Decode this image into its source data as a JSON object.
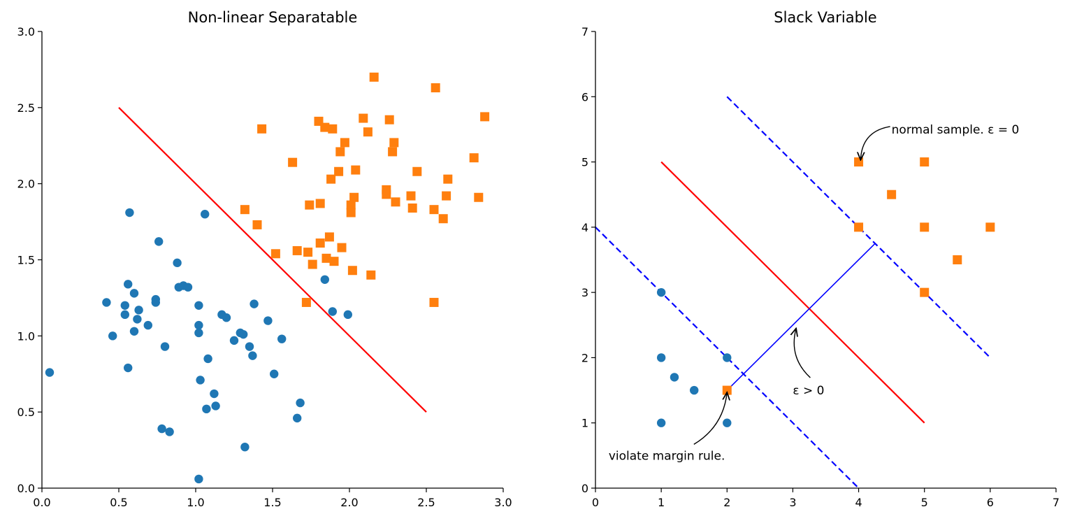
{
  "chart_data": [
    {
      "type": "scatter",
      "title": "Non-linear Separatable",
      "xlabel": "",
      "ylabel": "",
      "xlim": [
        0,
        3
      ],
      "ylim": [
        0,
        3
      ],
      "xticks": [
        "0.0",
        "0.5",
        "1.0",
        "1.5",
        "2.0",
        "2.5",
        "3.0"
      ],
      "yticks": [
        "0.0",
        "0.5",
        "1.0",
        "1.5",
        "2.0",
        "2.5",
        "3.0"
      ],
      "grid": false,
      "series": [
        {
          "marker": "circle",
          "color": "#1f77b4",
          "points": [
            [
              0.05,
              0.76
            ],
            [
              0.42,
              1.22
            ],
            [
              0.46,
              1.0
            ],
            [
              0.54,
              1.14
            ],
            [
              0.54,
              1.2
            ],
            [
              0.56,
              0.79
            ],
            [
              0.56,
              1.34
            ],
            [
              0.57,
              1.81
            ],
            [
              0.6,
              1.28
            ],
            [
              0.6,
              1.03
            ],
            [
              0.62,
              1.11
            ],
            [
              0.63,
              1.17
            ],
            [
              0.69,
              1.07
            ],
            [
              0.74,
              1.24
            ],
            [
              0.74,
              1.22
            ],
            [
              0.76,
              1.62
            ],
            [
              0.78,
              0.39
            ],
            [
              0.8,
              0.93
            ],
            [
              0.83,
              0.37
            ],
            [
              0.88,
              1.48
            ],
            [
              0.89,
              1.32
            ],
            [
              0.92,
              1.33
            ],
            [
              0.95,
              1.32
            ],
            [
              1.02,
              1.2
            ],
            [
              1.02,
              1.07
            ],
            [
              1.02,
              1.02
            ],
            [
              1.03,
              0.71
            ],
            [
              1.02,
              0.06
            ],
            [
              1.06,
              1.8
            ],
            [
              1.07,
              0.52
            ],
            [
              1.08,
              0.85
            ],
            [
              1.12,
              0.62
            ],
            [
              1.13,
              0.54
            ],
            [
              1.17,
              1.14
            ],
            [
              1.2,
              1.12
            ],
            [
              1.25,
              0.97
            ],
            [
              1.29,
              1.02
            ],
            [
              1.31,
              1.01
            ],
            [
              1.32,
              0.27
            ],
            [
              1.35,
              0.93
            ],
            [
              1.37,
              0.87
            ],
            [
              1.38,
              1.21
            ],
            [
              1.47,
              1.1
            ],
            [
              1.51,
              0.75
            ],
            [
              1.56,
              0.98
            ],
            [
              1.66,
              0.46
            ],
            [
              1.68,
              0.56
            ],
            [
              1.84,
              1.37
            ],
            [
              1.89,
              1.16
            ],
            [
              1.99,
              1.14
            ]
          ]
        },
        {
          "marker": "square",
          "color": "#ff7f0e",
          "points": [
            [
              1.32,
              1.83
            ],
            [
              1.4,
              1.73
            ],
            [
              1.43,
              2.36
            ],
            [
              1.52,
              1.54
            ],
            [
              1.63,
              2.14
            ],
            [
              1.66,
              1.56
            ],
            [
              1.72,
              1.22
            ],
            [
              1.73,
              1.55
            ],
            [
              1.74,
              1.86
            ],
            [
              1.76,
              1.47
            ],
            [
              1.8,
              2.41
            ],
            [
              1.81,
              1.61
            ],
            [
              1.81,
              1.87
            ],
            [
              1.84,
              2.37
            ],
            [
              1.85,
              1.51
            ],
            [
              1.87,
              1.65
            ],
            [
              1.88,
              2.03
            ],
            [
              1.89,
              2.36
            ],
            [
              1.9,
              1.49
            ],
            [
              1.93,
              2.08
            ],
            [
              1.94,
              2.21
            ],
            [
              1.95,
              1.58
            ],
            [
              1.97,
              2.27
            ],
            [
              2.01,
              1.81
            ],
            [
              2.01,
              1.86
            ],
            [
              2.02,
              1.43
            ],
            [
              2.03,
              1.91
            ],
            [
              2.04,
              2.09
            ],
            [
              2.09,
              2.43
            ],
            [
              2.12,
              2.34
            ],
            [
              2.14,
              1.4
            ],
            [
              2.16,
              2.7
            ],
            [
              2.24,
              1.93
            ],
            [
              2.24,
              1.96
            ],
            [
              2.26,
              2.42
            ],
            [
              2.28,
              2.21
            ],
            [
              2.29,
              2.27
            ],
            [
              2.3,
              1.88
            ],
            [
              2.4,
              1.92
            ],
            [
              2.41,
              1.84
            ],
            [
              2.44,
              2.08
            ],
            [
              2.55,
              1.83
            ],
            [
              2.55,
              1.22
            ],
            [
              2.56,
              2.63
            ],
            [
              2.61,
              1.77
            ],
            [
              2.63,
              1.92
            ],
            [
              2.64,
              2.03
            ],
            [
              2.81,
              2.17
            ],
            [
              2.84,
              1.91
            ],
            [
              2.88,
              2.44
            ]
          ]
        }
      ],
      "lines": [
        {
          "color": "#ff0000",
          "style": "solid",
          "points": [
            [
              0.5,
              2.5
            ],
            [
              2.5,
              0.5
            ]
          ]
        }
      ]
    },
    {
      "type": "scatter",
      "title": "Slack Variable",
      "xlabel": "",
      "ylabel": "",
      "xlim": [
        0,
        7
      ],
      "ylim": [
        0,
        7
      ],
      "xticks": [
        "0",
        "1",
        "2",
        "3",
        "4",
        "5",
        "6",
        "7"
      ],
      "yticks": [
        "0",
        "1",
        "2",
        "3",
        "4",
        "5",
        "6",
        "7"
      ],
      "grid": false,
      "series": [
        {
          "marker": "circle",
          "color": "#1f77b4",
          "points": [
            [
              1,
              3
            ],
            [
              1,
              2
            ],
            [
              1,
              1
            ],
            [
              1.2,
              1.7
            ],
            [
              1.5,
              1.5
            ],
            [
              2,
              2
            ],
            [
              2,
              1
            ]
          ]
        },
        {
          "marker": "square",
          "color": "#ff7f0e",
          "points": [
            [
              2,
              1.5
            ],
            [
              4,
              5
            ],
            [
              4,
              4
            ],
            [
              4.5,
              4.5
            ],
            [
              5,
              5
            ],
            [
              5,
              4
            ],
            [
              5,
              3
            ],
            [
              5.5,
              3.5
            ],
            [
              6,
              4
            ]
          ]
        }
      ],
      "lines": [
        {
          "color": "#ff0000",
          "style": "solid",
          "points": [
            [
              1,
              5
            ],
            [
              5,
              1
            ]
          ]
        },
        {
          "color": "#0000ff",
          "style": "dashed",
          "points": [
            [
              0,
              4
            ],
            [
              4,
              0
            ]
          ]
        },
        {
          "color": "#0000ff",
          "style": "dashed",
          "points": [
            [
              2,
              6
            ],
            [
              6,
              2
            ]
          ]
        },
        {
          "color": "#0000ff",
          "style": "thin",
          "points": [
            [
              2,
              1.5
            ],
            [
              4.25,
              3.75
            ]
          ]
        }
      ],
      "annotations": [
        {
          "text": "normal sample. ε = 0",
          "text_at": [
            4.5,
            5.5
          ],
          "arrow_to": [
            4.03,
            5.03
          ]
        },
        {
          "text": "ε > 0",
          "text_at": [
            3.0,
            1.5
          ],
          "arrow_to": [
            3.05,
            2.45
          ]
        },
        {
          "text": "violate margin rule.",
          "text_at": [
            0.2,
            0.5
          ],
          "arrow_to": [
            2.0,
            1.47
          ]
        }
      ]
    }
  ]
}
